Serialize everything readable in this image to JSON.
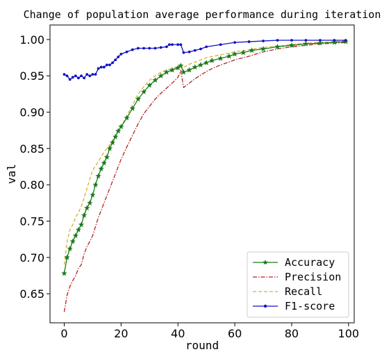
{
  "chart_data": {
    "type": "line",
    "title": "Change of population average performance during iteration",
    "xlabel": "round",
    "ylabel": "val",
    "xlim": [
      -5,
      102
    ],
    "ylim": [
      0.61,
      1.02
    ],
    "xticks": [
      0,
      20,
      40,
      60,
      80,
      100
    ],
    "yticks": [
      0.65,
      0.7,
      0.75,
      0.8,
      0.85,
      0.9,
      0.95,
      1.0
    ],
    "grid": false,
    "legend_position": "bottom-right",
    "series": [
      {
        "name": "Accuracy",
        "color": "#1a7a1a",
        "marker": "star",
        "linestyle": "solid",
        "points": [
          [
            0,
            0.678
          ],
          [
            1,
            0.7
          ],
          [
            2,
            0.712
          ],
          [
            3,
            0.722
          ],
          [
            4,
            0.73
          ],
          [
            5,
            0.738
          ],
          [
            6,
            0.745
          ],
          [
            7,
            0.758
          ],
          [
            8,
            0.768
          ],
          [
            9,
            0.775
          ],
          [
            10,
            0.786
          ],
          [
            11,
            0.8
          ],
          [
            12,
            0.812
          ],
          [
            13,
            0.822
          ],
          [
            14,
            0.83
          ],
          [
            15,
            0.838
          ],
          [
            16,
            0.85
          ],
          [
            17,
            0.858
          ],
          [
            18,
            0.866
          ],
          [
            19,
            0.874
          ],
          [
            20,
            0.88
          ],
          [
            22,
            0.892
          ],
          [
            24,
            0.905
          ],
          [
            26,
            0.918
          ],
          [
            28,
            0.928
          ],
          [
            30,
            0.937
          ],
          [
            32,
            0.944
          ],
          [
            34,
            0.95
          ],
          [
            36,
            0.955
          ],
          [
            38,
            0.958
          ],
          [
            40,
            0.961
          ],
          [
            41,
            0.964
          ],
          [
            42,
            0.955
          ],
          [
            44,
            0.958
          ],
          [
            46,
            0.962
          ],
          [
            48,
            0.965
          ],
          [
            50,
            0.968
          ],
          [
            52,
            0.971
          ],
          [
            55,
            0.974
          ],
          [
            58,
            0.977
          ],
          [
            60,
            0.98
          ],
          [
            63,
            0.982
          ],
          [
            66,
            0.985
          ],
          [
            70,
            0.987
          ],
          [
            75,
            0.99
          ],
          [
            80,
            0.992
          ],
          [
            85,
            0.994
          ],
          [
            90,
            0.995
          ],
          [
            95,
            0.996
          ],
          [
            99,
            0.997
          ]
        ]
      },
      {
        "name": "Precision",
        "color": "#b22222",
        "marker": "none",
        "linestyle": "dashdot",
        "points": [
          [
            0,
            0.625
          ],
          [
            1,
            0.648
          ],
          [
            2,
            0.66
          ],
          [
            3,
            0.668
          ],
          [
            4,
            0.675
          ],
          [
            5,
            0.685
          ],
          [
            6,
            0.69
          ],
          [
            7,
            0.705
          ],
          [
            8,
            0.715
          ],
          [
            9,
            0.722
          ],
          [
            10,
            0.73
          ],
          [
            12,
            0.755
          ],
          [
            14,
            0.775
          ],
          [
            16,
            0.795
          ],
          [
            18,
            0.815
          ],
          [
            20,
            0.835
          ],
          [
            22,
            0.852
          ],
          [
            24,
            0.868
          ],
          [
            26,
            0.884
          ],
          [
            28,
            0.898
          ],
          [
            30,
            0.908
          ],
          [
            32,
            0.918
          ],
          [
            34,
            0.926
          ],
          [
            36,
            0.933
          ],
          [
            38,
            0.94
          ],
          [
            40,
            0.948
          ],
          [
            41,
            0.957
          ],
          [
            42,
            0.934
          ],
          [
            44,
            0.94
          ],
          [
            46,
            0.946
          ],
          [
            48,
            0.951
          ],
          [
            50,
            0.956
          ],
          [
            52,
            0.96
          ],
          [
            55,
            0.965
          ],
          [
            58,
            0.969
          ],
          [
            60,
            0.972
          ],
          [
            65,
            0.977
          ],
          [
            70,
            0.983
          ],
          [
            75,
            0.987
          ],
          [
            80,
            0.99
          ],
          [
            85,
            0.992
          ],
          [
            90,
            0.994
          ],
          [
            95,
            0.995
          ],
          [
            99,
            0.996
          ]
        ]
      },
      {
        "name": "Recall",
        "color": "#d4b030",
        "marker": "none",
        "linestyle": "dashed",
        "points": [
          [
            0,
            0.69
          ],
          [
            1,
            0.722
          ],
          [
            2,
            0.738
          ],
          [
            3,
            0.745
          ],
          [
            4,
            0.755
          ],
          [
            5,
            0.762
          ],
          [
            6,
            0.77
          ],
          [
            7,
            0.782
          ],
          [
            8,
            0.795
          ],
          [
            9,
            0.808
          ],
          [
            10,
            0.82
          ],
          [
            12,
            0.832
          ],
          [
            14,
            0.845
          ],
          [
            16,
            0.855
          ],
          [
            18,
            0.868
          ],
          [
            20,
            0.88
          ],
          [
            22,
            0.895
          ],
          [
            24,
            0.91
          ],
          [
            26,
            0.925
          ],
          [
            28,
            0.935
          ],
          [
            30,
            0.944
          ],
          [
            32,
            0.95
          ],
          [
            34,
            0.955
          ],
          [
            36,
            0.958
          ],
          [
            38,
            0.96
          ],
          [
            40,
            0.962
          ],
          [
            41,
            0.964
          ],
          [
            42,
            0.962
          ],
          [
            44,
            0.966
          ],
          [
            46,
            0.969
          ],
          [
            48,
            0.972
          ],
          [
            50,
            0.975
          ],
          [
            55,
            0.979
          ],
          [
            60,
            0.983
          ],
          [
            65,
            0.986
          ],
          [
            70,
            0.989
          ],
          [
            75,
            0.991
          ],
          [
            80,
            0.993
          ],
          [
            85,
            0.995
          ],
          [
            90,
            0.996
          ],
          [
            95,
            0.997
          ],
          [
            99,
            0.998
          ]
        ]
      },
      {
        "name": "F1-score",
        "color": "#1010c8",
        "marker": "dot",
        "linestyle": "solid",
        "points": [
          [
            0,
            0.952
          ],
          [
            1,
            0.95
          ],
          [
            2,
            0.945
          ],
          [
            3,
            0.948
          ],
          [
            4,
            0.95
          ],
          [
            5,
            0.947
          ],
          [
            6,
            0.95
          ],
          [
            7,
            0.947
          ],
          [
            8,
            0.952
          ],
          [
            9,
            0.95
          ],
          [
            10,
            0.952
          ],
          [
            11,
            0.952
          ],
          [
            12,
            0.96
          ],
          [
            13,
            0.962
          ],
          [
            14,
            0.962
          ],
          [
            15,
            0.965
          ],
          [
            16,
            0.965
          ],
          [
            17,
            0.968
          ],
          [
            18,
            0.972
          ],
          [
            19,
            0.976
          ],
          [
            20,
            0.98
          ],
          [
            22,
            0.983
          ],
          [
            24,
            0.986
          ],
          [
            26,
            0.988
          ],
          [
            28,
            0.988
          ],
          [
            30,
            0.988
          ],
          [
            32,
            0.988
          ],
          [
            34,
            0.989
          ],
          [
            36,
            0.99
          ],
          [
            37,
            0.993
          ],
          [
            38,
            0.993
          ],
          [
            40,
            0.993
          ],
          [
            41,
            0.993
          ],
          [
            42,
            0.982
          ],
          [
            44,
            0.983
          ],
          [
            46,
            0.985
          ],
          [
            48,
            0.987
          ],
          [
            50,
            0.99
          ],
          [
            55,
            0.993
          ],
          [
            60,
            0.996
          ],
          [
            65,
            0.997
          ],
          [
            70,
            0.998
          ],
          [
            75,
            0.999
          ],
          [
            80,
            0.999
          ],
          [
            85,
            0.999
          ],
          [
            90,
            0.999
          ],
          [
            95,
            0.999
          ],
          [
            99,
            0.999
          ]
        ]
      }
    ]
  }
}
